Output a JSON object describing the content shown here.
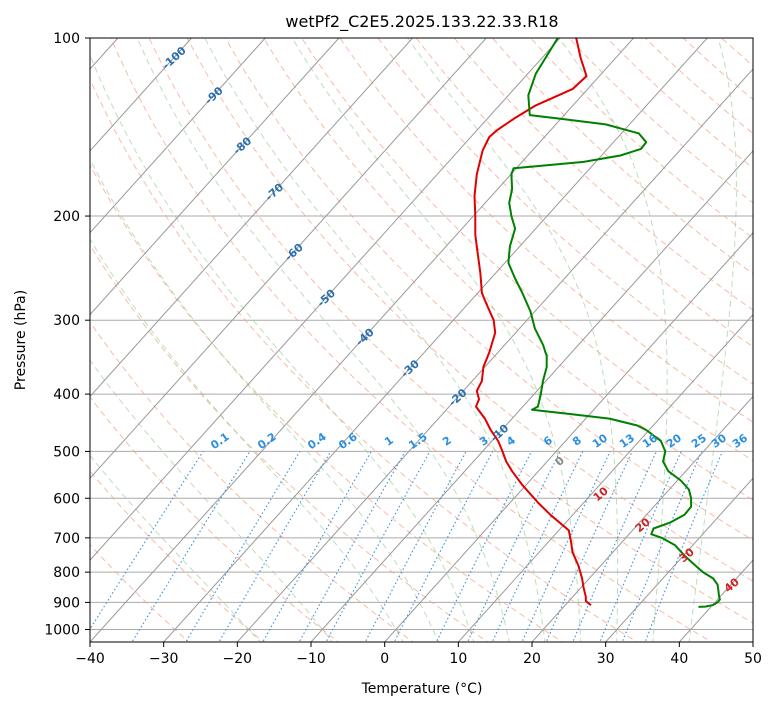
{
  "chart_data": {
    "type": "line",
    "title": "wetPf2_C2E5.2025.133.22.33.R18",
    "xlabel": "Temperature (°C)",
    "ylabel": "Pressure (hPa)",
    "xlim": [
      -40,
      50
    ],
    "ylim": [
      1050,
      100
    ],
    "y_scale": "log",
    "grid": true,
    "x_ticks": [
      -40,
      -30,
      -20,
      -10,
      0,
      10,
      20,
      30,
      40,
      50
    ],
    "y_ticks": [
      100,
      200,
      300,
      400,
      500,
      600,
      700,
      800,
      900,
      1000
    ],
    "colors": {
      "temperature": "#e00000",
      "dewpoint": "#008000",
      "isotherm": "#999999",
      "dry_adiabat": "#f4a080",
      "moist_adiabat": "#90c890",
      "mixing_ratio": "#3a8fd8",
      "isobar": "#aaaaaa",
      "isotherm_label": "#2a6fb0",
      "mixing_label": "#2a8fe0",
      "temp_label": "#d02020",
      "zero_label": "#888888"
    },
    "series": [
      {
        "key": "temperature",
        "points": [
          [
            26,
            100
          ],
          [
            26.6,
            108
          ],
          [
            27.4,
            116
          ],
          [
            25.5,
            122
          ],
          [
            20.5,
            130
          ],
          [
            17.5,
            137
          ],
          [
            15.3,
            143
          ],
          [
            14.2,
            147
          ],
          [
            13.3,
            155
          ],
          [
            12.5,
            170
          ],
          [
            12.2,
            185
          ],
          [
            12.3,
            200
          ],
          [
            12.3,
            215
          ],
          [
            12.6,
            230
          ],
          [
            13,
            250
          ],
          [
            13.2,
            270
          ],
          [
            14,
            285
          ],
          [
            14.8,
            300
          ],
          [
            15,
            315
          ],
          [
            14.2,
            340
          ],
          [
            13.4,
            360
          ],
          [
            13.2,
            380
          ],
          [
            12.5,
            395
          ],
          [
            12.8,
            408
          ],
          [
            12.4,
            420
          ],
          [
            13.6,
            440
          ],
          [
            14.4,
            460
          ],
          [
            15.4,
            480
          ],
          [
            16,
            500
          ],
          [
            16.5,
            520
          ],
          [
            17.3,
            540
          ],
          [
            18.7,
            570
          ],
          [
            20.8,
            610
          ],
          [
            22.5,
            640
          ],
          [
            25,
            680
          ],
          [
            25.3,
            710
          ],
          [
            25.5,
            740
          ],
          [
            26.3,
            780
          ],
          [
            26.8,
            820
          ],
          [
            27,
            850
          ],
          [
            27.3,
            880
          ],
          [
            27.3,
            895
          ],
          [
            28,
            910
          ]
        ]
      },
      {
        "key": "dewpoint",
        "points": [
          [
            23.5,
            100
          ],
          [
            20.5,
            115
          ],
          [
            19.5,
            125
          ],
          [
            19.7,
            135
          ],
          [
            24,
            137
          ],
          [
            30,
            140
          ],
          [
            34.5,
            145
          ],
          [
            35.5,
            150
          ],
          [
            34.8,
            154
          ],
          [
            32,
            158
          ],
          [
            27,
            162
          ],
          [
            20,
            165
          ],
          [
            17.5,
            166
          ],
          [
            17.2,
            170
          ],
          [
            17.3,
            180
          ],
          [
            16.9,
            190
          ],
          [
            17.2,
            200
          ],
          [
            17.7,
            210
          ],
          [
            17,
            225
          ],
          [
            16.8,
            240
          ],
          [
            17.7,
            255
          ],
          [
            18.7,
            270
          ],
          [
            19.8,
            290
          ],
          [
            20.4,
            310
          ],
          [
            21.5,
            330
          ],
          [
            22,
            345
          ],
          [
            22,
            360
          ],
          [
            21.5,
            380
          ],
          [
            21.2,
            400
          ],
          [
            20.8,
            420
          ],
          [
            20,
            425
          ],
          [
            25,
            432
          ],
          [
            30.5,
            440
          ],
          [
            34.3,
            452
          ],
          [
            35.5,
            460
          ],
          [
            36.5,
            470
          ],
          [
            37.5,
            480
          ],
          [
            37.8,
            490
          ],
          [
            38.1,
            500
          ],
          [
            37.8,
            520
          ],
          [
            38.5,
            540
          ],
          [
            40.2,
            560
          ],
          [
            41.3,
            580
          ],
          [
            41.6,
            600
          ],
          [
            41.6,
            620
          ],
          [
            40.7,
            640
          ],
          [
            38.7,
            660
          ],
          [
            36.5,
            675
          ],
          [
            36.2,
            690
          ],
          [
            37.6,
            700
          ],
          [
            39.4,
            720
          ],
          [
            40.7,
            750
          ],
          [
            42.2,
            780
          ],
          [
            43.2,
            800
          ],
          [
            44.6,
            820
          ],
          [
            45.2,
            840
          ],
          [
            45.3,
            860
          ],
          [
            45.4,
            880
          ],
          [
            45.5,
            890
          ],
          [
            45.2,
            900
          ],
          [
            44.5,
            910
          ],
          [
            43.5,
            915
          ],
          [
            42.6,
            916
          ]
        ]
      }
    ],
    "isotherm_labels": [
      "-100",
      "-90",
      "-80",
      "-70",
      "-60",
      "-50",
      "-40",
      "-30",
      "-20",
      "-10"
    ],
    "mixing_ratio_labels": [
      "0.1",
      "0.2",
      "0.4",
      "0.6",
      "1",
      "1.5",
      "2",
      "3",
      "4",
      "6",
      "8",
      "10",
      "13",
      "16",
      "20",
      "25",
      "30",
      "36"
    ],
    "temperature_labels": [
      "0",
      "10",
      "20",
      "30",
      "40"
    ]
  }
}
